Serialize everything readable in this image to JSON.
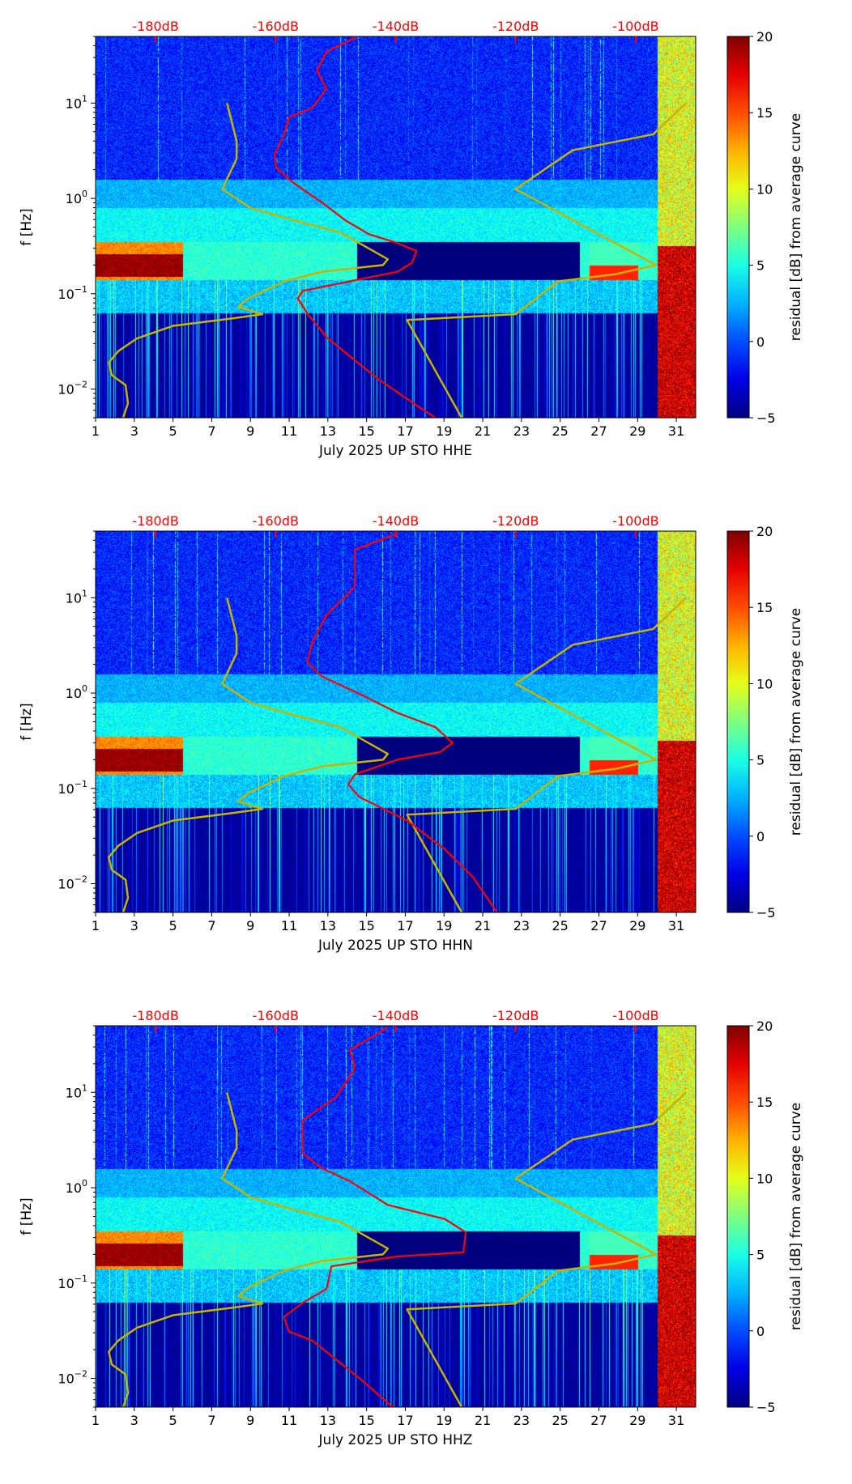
{
  "chart_data": [
    {
      "type": "heatmap",
      "title": "",
      "xlabel": "July 2025 UP STO  HHE",
      "ylabel": "f [Hz]",
      "x_ticks": [
        "1",
        "3",
        "5",
        "7",
        "9",
        "11",
        "13",
        "15",
        "17",
        "19",
        "21",
        "23",
        "25",
        "27",
        "29",
        "31"
      ],
      "xlim": [
        1,
        32
      ],
      "ylim_hz": [
        0.005,
        50
      ],
      "y_scale": "log",
      "y_ticks": [
        {
          "base": "10",
          "exp": "1",
          "value": 10
        },
        {
          "base": "10",
          "exp": "0",
          "value": 1
        },
        {
          "base": "10",
          "exp": "−1",
          "value": 0.1
        },
        {
          "base": "10",
          "exp": "−2",
          "value": 0.01
        }
      ],
      "top_axis": {
        "label_color": "#ff0000",
        "ticks": [
          "-180dB",
          "-160dB",
          "-140dB",
          "-120dB",
          "-100dB"
        ],
        "values_db": [
          -180,
          -160,
          -140,
          -120,
          -100
        ],
        "db_range": [
          -190,
          -90
        ]
      },
      "colorbar": {
        "label": "residual [dB] from average curve",
        "ticks": [
          "20",
          "15",
          "10",
          "5",
          "0",
          "−5"
        ],
        "values": [
          20,
          15,
          10,
          5,
          0,
          -5
        ],
        "range": [
          -5,
          20
        ],
        "colormap": "jet"
      },
      "red_curve_db_vs_hz": [
        [
          -146.5,
          49
        ],
        [
          -151.5,
          34.7
        ],
        [
          -153.1,
          21.9
        ],
        [
          -151.5,
          14.1
        ],
        [
          -153.9,
          8.9
        ],
        [
          -157.8,
          7.1
        ],
        [
          -158.6,
          4.6
        ],
        [
          -160.2,
          2.9
        ],
        [
          -159.9,
          2.1
        ],
        [
          -157.0,
          1.45
        ],
        [
          -152.3,
          0.91
        ],
        [
          -148.4,
          0.59
        ],
        [
          -144.4,
          0.42
        ],
        [
          -139.7,
          0.34
        ],
        [
          -136.5,
          0.28
        ],
        [
          -137.3,
          0.21
        ],
        [
          -139.7,
          0.17
        ],
        [
          -147.6,
          0.135
        ],
        [
          -155.5,
          0.107
        ],
        [
          -156.3,
          0.089
        ],
        [
          -154.7,
          0.062
        ],
        [
          -151.5,
          0.035
        ],
        [
          -147.6,
          0.022
        ],
        [
          -142.8,
          0.0126
        ],
        [
          -138.1,
          0.0079
        ],
        [
          -133.4,
          0.005
        ]
      ]
    },
    {
      "type": "heatmap",
      "title": "",
      "xlabel": "July 2025 UP STO  HHN",
      "ylabel": "f [Hz]",
      "x_ticks": [
        "1",
        "3",
        "5",
        "7",
        "9",
        "11",
        "13",
        "15",
        "17",
        "19",
        "21",
        "23",
        "25",
        "27",
        "29",
        "31"
      ],
      "xlim": [
        1,
        32
      ],
      "ylim_hz": [
        0.005,
        50
      ],
      "y_scale": "log",
      "y_ticks": [
        {
          "base": "10",
          "exp": "1",
          "value": 10
        },
        {
          "base": "10",
          "exp": "0",
          "value": 1
        },
        {
          "base": "10",
          "exp": "−1",
          "value": 0.1
        },
        {
          "base": "10",
          "exp": "−2",
          "value": 0.01
        }
      ],
      "top_axis": {
        "label_color": "#ff0000",
        "ticks": [
          "-180dB",
          "-160dB",
          "-140dB",
          "-120dB",
          "-100dB"
        ],
        "values_db": [
          -180,
          -160,
          -140,
          -120,
          -100
        ],
        "db_range": [
          -190,
          -90
        ]
      },
      "colorbar": {
        "label": "residual [dB] from average curve",
        "ticks": [
          "20",
          "15",
          "10",
          "5",
          "0",
          "−5"
        ],
        "values": [
          20,
          15,
          10,
          5,
          0,
          -5
        ],
        "range": [
          -5,
          20
        ],
        "colormap": "jet"
      },
      "red_curve_db_vs_hz": [
        [
          -139.7,
          47
        ],
        [
          -146.8,
          32
        ],
        [
          -146.8,
          13
        ],
        [
          -151.5,
          6.6
        ],
        [
          -153.9,
          3.4
        ],
        [
          -154.7,
          2.1
        ],
        [
          -152.3,
          1.5
        ],
        [
          -146.0,
          0.98
        ],
        [
          -139.7,
          0.62
        ],
        [
          -133.4,
          0.44
        ],
        [
          -130.5,
          0.3
        ],
        [
          -132.6,
          0.24
        ],
        [
          -139.7,
          0.2
        ],
        [
          -146.8,
          0.14
        ],
        [
          -147.9,
          0.11
        ],
        [
          -146.0,
          0.081
        ],
        [
          -138.1,
          0.046
        ],
        [
          -131.8,
          0.023
        ],
        [
          -127.1,
          0.0117
        ],
        [
          -123.1,
          0.005
        ]
      ]
    },
    {
      "type": "heatmap",
      "title": "",
      "xlabel": "July 2025 UP STO  HHZ",
      "ylabel": "f [Hz]",
      "x_ticks": [
        "1",
        "3",
        "5",
        "7",
        "9",
        "11",
        "13",
        "15",
        "17",
        "19",
        "21",
        "23",
        "25",
        "27",
        "29",
        "31"
      ],
      "xlim": [
        1,
        32
      ],
      "ylim_hz": [
        0.005,
        50
      ],
      "y_scale": "log",
      "y_ticks": [
        {
          "base": "10",
          "exp": "1",
          "value": 10
        },
        {
          "base": "10",
          "exp": "0",
          "value": 1
        },
        {
          "base": "10",
          "exp": "−1",
          "value": 0.1
        },
        {
          "base": "10",
          "exp": "−2",
          "value": 0.01
        }
      ],
      "top_axis": {
        "label_color": "#ff0000",
        "ticks": [
          "-180dB",
          "-160dB",
          "-140dB",
          "-120dB",
          "-100dB"
        ],
        "values_db": [
          -180,
          -160,
          -140,
          -120,
          -100
        ],
        "db_range": [
          -190,
          -90
        ]
      },
      "colorbar": {
        "label": "residual [dB] from average curve",
        "ticks": [
          "20",
          "15",
          "10",
          "5",
          "0",
          "−5"
        ],
        "values": [
          20,
          15,
          10,
          5,
          0,
          -5
        ],
        "range": [
          -5,
          20
        ],
        "colormap": "jet"
      },
      "red_curve_db_vs_hz": [
        [
          -141.3,
          48
        ],
        [
          -147.6,
          28
        ],
        [
          -146.8,
          18
        ],
        [
          -149.9,
          8.9
        ],
        [
          -155.5,
          5.1
        ],
        [
          -155.5,
          2.3
        ],
        [
          -152.3,
          1.6
        ],
        [
          -147.6,
          1.17
        ],
        [
          -141.3,
          0.66
        ],
        [
          -131.8,
          0.47
        ],
        [
          -128.3,
          0.34
        ],
        [
          -128.7,
          0.21
        ],
        [
          -139.7,
          0.19
        ],
        [
          -150.7,
          0.15
        ],
        [
          -151.5,
          0.087
        ],
        [
          -155.5,
          0.062
        ],
        [
          -158.6,
          0.044
        ],
        [
          -157.8,
          0.031
        ],
        [
          -153.9,
          0.025
        ],
        [
          -146.0,
          0.01
        ],
        [
          -140.5,
          0.005
        ]
      ]
    }
  ],
  "reference_curves": {
    "color": "#c8b400",
    "low_noise_model_db_vs_hz": [
      [
        -168.1,
        10
      ],
      [
        -166.5,
        4.0
      ],
      [
        -166.5,
        2.6
      ],
      [
        -168.9,
        1.25
      ],
      [
        -164.1,
        0.79
      ],
      [
        -157.0,
        0.59
      ],
      [
        -149.2,
        0.44
      ],
      [
        -141.3,
        0.23
      ],
      [
        -142.1,
        0.2
      ],
      [
        -152.3,
        0.17
      ],
      [
        -158.6,
        0.135
      ],
      [
        -164.6,
        0.089
      ],
      [
        -166.2,
        0.073
      ],
      [
        -162.2,
        0.061
      ],
      [
        -167.3,
        0.055
      ],
      [
        -177.1,
        0.046
      ],
      [
        -183.1,
        0.034
      ],
      [
        -186.2,
        0.025
      ],
      [
        -187.8,
        0.019
      ],
      [
        -187.3,
        0.014
      ],
      [
        -185.0,
        0.011
      ],
      [
        -184.6,
        0.0071
      ],
      [
        -185.4,
        0.005
      ]
    ],
    "high_noise_model_db_vs_hz": [
      [
        -91.6,
        10
      ],
      [
        -97.1,
        4.7
      ],
      [
        -110.5,
        3.2
      ],
      [
        -120.0,
        1.25
      ],
      [
        -96.6,
        0.2
      ],
      [
        -103.4,
        0.16
      ],
      [
        -112.9,
        0.135
      ],
      [
        -120.0,
        0.061
      ],
      [
        -138.1,
        0.053
      ],
      [
        -129.0,
        0.005
      ]
    ]
  },
  "red_curve_color": "#ff0000"
}
